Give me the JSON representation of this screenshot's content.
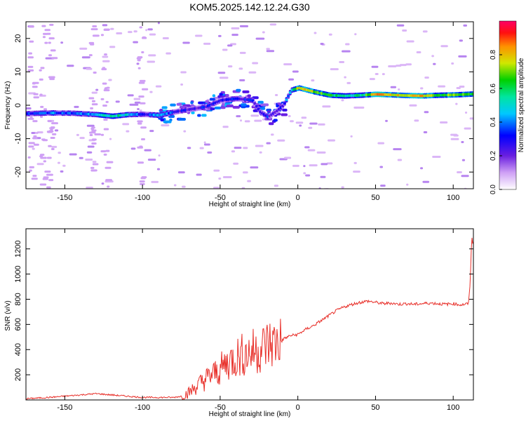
{
  "figure": {
    "title": "KOM5.2025.142.12.24.G30"
  },
  "colors": {
    "snr_line": "#e8302a",
    "axis": "#000000",
    "colormap": [
      "#e7c8f7",
      "#cfa0f5",
      "#8a2be2",
      "#2222ff",
      "#00a0ff",
      "#00e5e5",
      "#00c000",
      "#b0e000",
      "#ffe000",
      "#ff8000",
      "#ff0000",
      "#ff0060"
    ]
  },
  "chart_data": [
    {
      "type": "heatmap",
      "name": "spectrogram",
      "xlabel": "Height of straight line (km)",
      "ylabel": "Frequency (Hz)",
      "xlim": [
        -175,
        113
      ],
      "ylim": [
        -25,
        25
      ],
      "xticks": [
        -150,
        -100,
        -50,
        0,
        50,
        100
      ],
      "yticks": [
        -20,
        -10,
        0,
        10,
        20
      ],
      "colorbar": {
        "label": "Normalized spectral amplitude",
        "range": [
          0,
          1
        ],
        "ticks": [
          0.0,
          0.2,
          0.4,
          0.6,
          0.8
        ]
      },
      "ridge": {
        "x": [
          -175,
          -160,
          -145,
          -130,
          -120,
          -110,
          -100,
          -90,
          -80,
          -70,
          -60,
          -50,
          -40,
          -30,
          -25,
          -20,
          -15,
          -10,
          -5,
          0,
          10,
          20,
          30,
          40,
          50,
          60,
          70,
          80,
          90,
          100,
          113
        ],
        "freq": [
          -2.5,
          -2.3,
          -2.4,
          -2.8,
          -3.3,
          -2.8,
          -2.7,
          -3.0,
          -2.0,
          -1.2,
          -0.5,
          1.5,
          2.0,
          1.5,
          -2.0,
          -3.5,
          -2.0,
          0,
          4.5,
          5.2,
          4.0,
          3.0,
          2.8,
          3.0,
          3.3,
          3.1,
          2.9,
          2.8,
          3.0,
          3.1,
          3.4
        ],
        "amplitude": [
          0.3,
          0.4,
          0.35,
          0.45,
          0.55,
          0.5,
          0.25,
          0.45,
          0.3,
          0.25,
          0.3,
          0.3,
          0.3,
          0.3,
          0.25,
          0.3,
          0.25,
          0.3,
          0.5,
          0.8,
          0.7,
          0.6,
          0.55,
          0.55,
          0.85,
          0.8,
          0.75,
          0.8,
          0.65,
          0.7,
          0.6
        ]
      }
    },
    {
      "type": "line",
      "name": "snr",
      "xlabel": "Height of straight line (km)",
      "ylabel": "SNR (v/v)",
      "xlim": [
        -175,
        113
      ],
      "ylim": [
        0,
        1360
      ],
      "xticks": [
        -150,
        -100,
        -50,
        0,
        50,
        100
      ],
      "yticks": [
        200,
        400,
        600,
        800,
        1000,
        1200
      ],
      "x": [
        -175,
        -160,
        -150,
        -140,
        -130,
        -120,
        -110,
        -100,
        -90,
        -80,
        -75,
        -70,
        -65,
        -60,
        -55,
        -50,
        -45,
        -40,
        -35,
        -30,
        -25,
        -20,
        -15,
        -10,
        -5,
        0,
        5,
        10,
        15,
        20,
        25,
        30,
        35,
        40,
        45,
        50,
        55,
        60,
        65,
        70,
        75,
        80,
        85,
        90,
        95,
        100,
        105,
        110,
        111,
        112,
        113
      ],
      "y": [
        10,
        20,
        30,
        40,
        50,
        40,
        30,
        20,
        20,
        20,
        30,
        60,
        110,
        160,
        200,
        240,
        300,
        340,
        360,
        380,
        400,
        440,
        450,
        480,
        510,
        520,
        560,
        590,
        630,
        670,
        710,
        740,
        760,
        775,
        785,
        775,
        765,
        770,
        760,
        765,
        760,
        765,
        770,
        765,
        760,
        765,
        755,
        765,
        1000,
        1250,
        1300
      ]
    }
  ]
}
